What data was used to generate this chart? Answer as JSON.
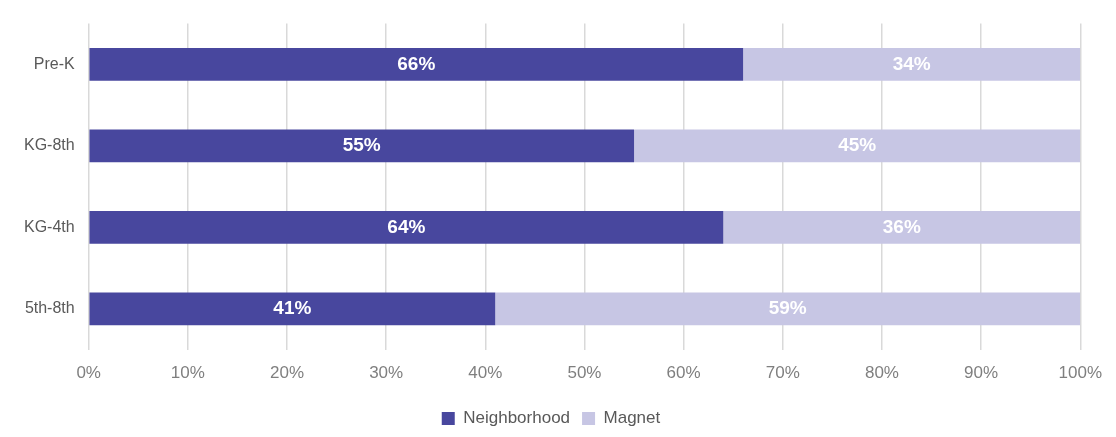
{
  "chart_data": {
    "type": "bar",
    "orientation": "horizontal",
    "stacked": true,
    "categories": [
      "Pre-K",
      "KG-8th",
      "KG-4th",
      "5th-8th"
    ],
    "series": [
      {
        "name": "Neighborhood",
        "color": "#48479e",
        "values": [
          66,
          55,
          64,
          41
        ],
        "value_labels": [
          "66%",
          "55%",
          "64%",
          "41%"
        ]
      },
      {
        "name": "Magnet",
        "color": "#c7c6e4",
        "values": [
          34,
          45,
          36,
          59
        ],
        "value_labels": [
          "34%",
          "45%",
          "36%",
          "59%"
        ]
      }
    ],
    "xlim": [
      0,
      100
    ],
    "xticks": [
      {
        "value": 0,
        "label": "0%"
      },
      {
        "value": 10,
        "label": "10%"
      },
      {
        "value": 20,
        "label": "20%"
      },
      {
        "value": 30,
        "label": "30%"
      },
      {
        "value": 40,
        "label": "40%"
      },
      {
        "value": 50,
        "label": "50%"
      },
      {
        "value": 60,
        "label": "60%"
      },
      {
        "value": 70,
        "label": "70%"
      },
      {
        "value": 80,
        "label": "80%"
      },
      {
        "value": 90,
        "label": "90%"
      },
      {
        "value": 100,
        "label": "100%"
      }
    ],
    "grid": "x",
    "legend": "bottom"
  }
}
